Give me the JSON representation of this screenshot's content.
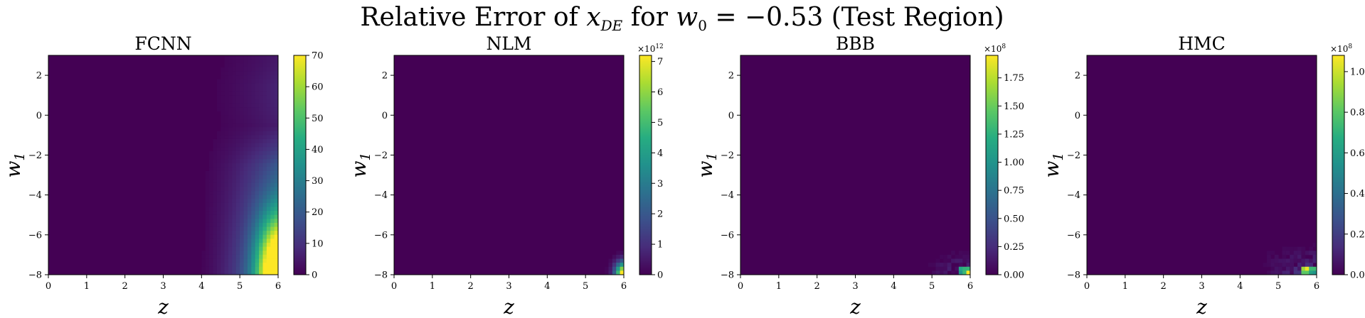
{
  "figure": {
    "title_text": "Relative Error of ",
    "title_math_var": "x",
    "title_math_sub": "DE",
    "title_for": " for ",
    "title_param_var": "w",
    "title_param_sub": "0",
    "title_eq": " = −0.53 (Test Region)"
  },
  "chart_data": [
    {
      "type": "heatmap",
      "title": "FCNN",
      "xlabel": "z",
      "ylabel_var": "w",
      "ylabel_sub": "1",
      "xlim": [
        0,
        6
      ],
      "ylim": [
        -8,
        3
      ],
      "x_ticks": [
        "0",
        "1",
        "2",
        "3",
        "4",
        "5",
        "6"
      ],
      "y_ticks": [
        "2",
        "0",
        "−2",
        "−4",
        "−6",
        "−8"
      ],
      "colorscale": "viridis",
      "colorbar_range": [
        0,
        70
      ],
      "colorbar_ticks": [
        "0",
        "10",
        "20",
        "30",
        "40",
        "50",
        "60",
        "70"
      ],
      "colorbar_multiplier_exp": "",
      "pattern": "smooth-right-gradient",
      "peak": {
        "z": 6,
        "w1": -8,
        "value": 70
      }
    },
    {
      "type": "heatmap",
      "title": "NLM",
      "xlabel": "z",
      "ylabel_var": "w",
      "ylabel_sub": "1",
      "xlim": [
        0,
        6
      ],
      "ylim": [
        -8,
        3
      ],
      "x_ticks": [
        "0",
        "1",
        "2",
        "3",
        "4",
        "5",
        "6"
      ],
      "y_ticks": [
        "2",
        "0",
        "−2",
        "−4",
        "−6",
        "−8"
      ],
      "colorscale": "viridis",
      "colorbar_range": [
        0,
        7.2
      ],
      "colorbar_ticks": [
        "0",
        "1",
        "2",
        "3",
        "4",
        "5",
        "6",
        "7"
      ],
      "colorbar_multiplier_exp": "12",
      "pattern": "smooth-corner",
      "peak": {
        "z": 6,
        "w1": -8,
        "value": 7.2
      }
    },
    {
      "type": "heatmap",
      "title": "BBB",
      "xlabel": "z",
      "ylabel_var": "w",
      "ylabel_sub": "1",
      "xlim": [
        0,
        6
      ],
      "ylim": [
        -8,
        3
      ],
      "x_ticks": [
        "0",
        "1",
        "2",
        "3",
        "4",
        "5",
        "6"
      ],
      "y_ticks": [
        "2",
        "0",
        "−2",
        "−4",
        "−6",
        "−8"
      ],
      "colorscale": "viridis",
      "colorbar_range": [
        0,
        1.95
      ],
      "colorbar_ticks": [
        "0.00",
        "0.25",
        "0.50",
        "0.75",
        "1.00",
        "1.25",
        "1.50",
        "1.75"
      ],
      "colorbar_multiplier_exp": "8",
      "pattern": "pixelated-corner",
      "peak": {
        "z": 6,
        "w1": -8,
        "value": 1.95
      }
    },
    {
      "type": "heatmap",
      "title": "HMC",
      "xlabel": "z",
      "ylabel_var": "w",
      "ylabel_sub": "1",
      "xlim": [
        0,
        6
      ],
      "ylim": [
        -8,
        3
      ],
      "x_ticks": [
        "0",
        "1",
        "2",
        "3",
        "4",
        "5",
        "6"
      ],
      "y_ticks": [
        "2",
        "0",
        "−2",
        "−4",
        "−6",
        "−8"
      ],
      "colorscale": "viridis",
      "colorbar_range": [
        0,
        1.08
      ],
      "colorbar_ticks": [
        "0.0",
        "0.2",
        "0.4",
        "0.6",
        "0.8",
        "1.0"
      ],
      "colorbar_multiplier_exp": "8",
      "pattern": "pixelated-corner-wide",
      "peak": {
        "z": 6,
        "w1": -8,
        "value": 1.08
      }
    }
  ]
}
